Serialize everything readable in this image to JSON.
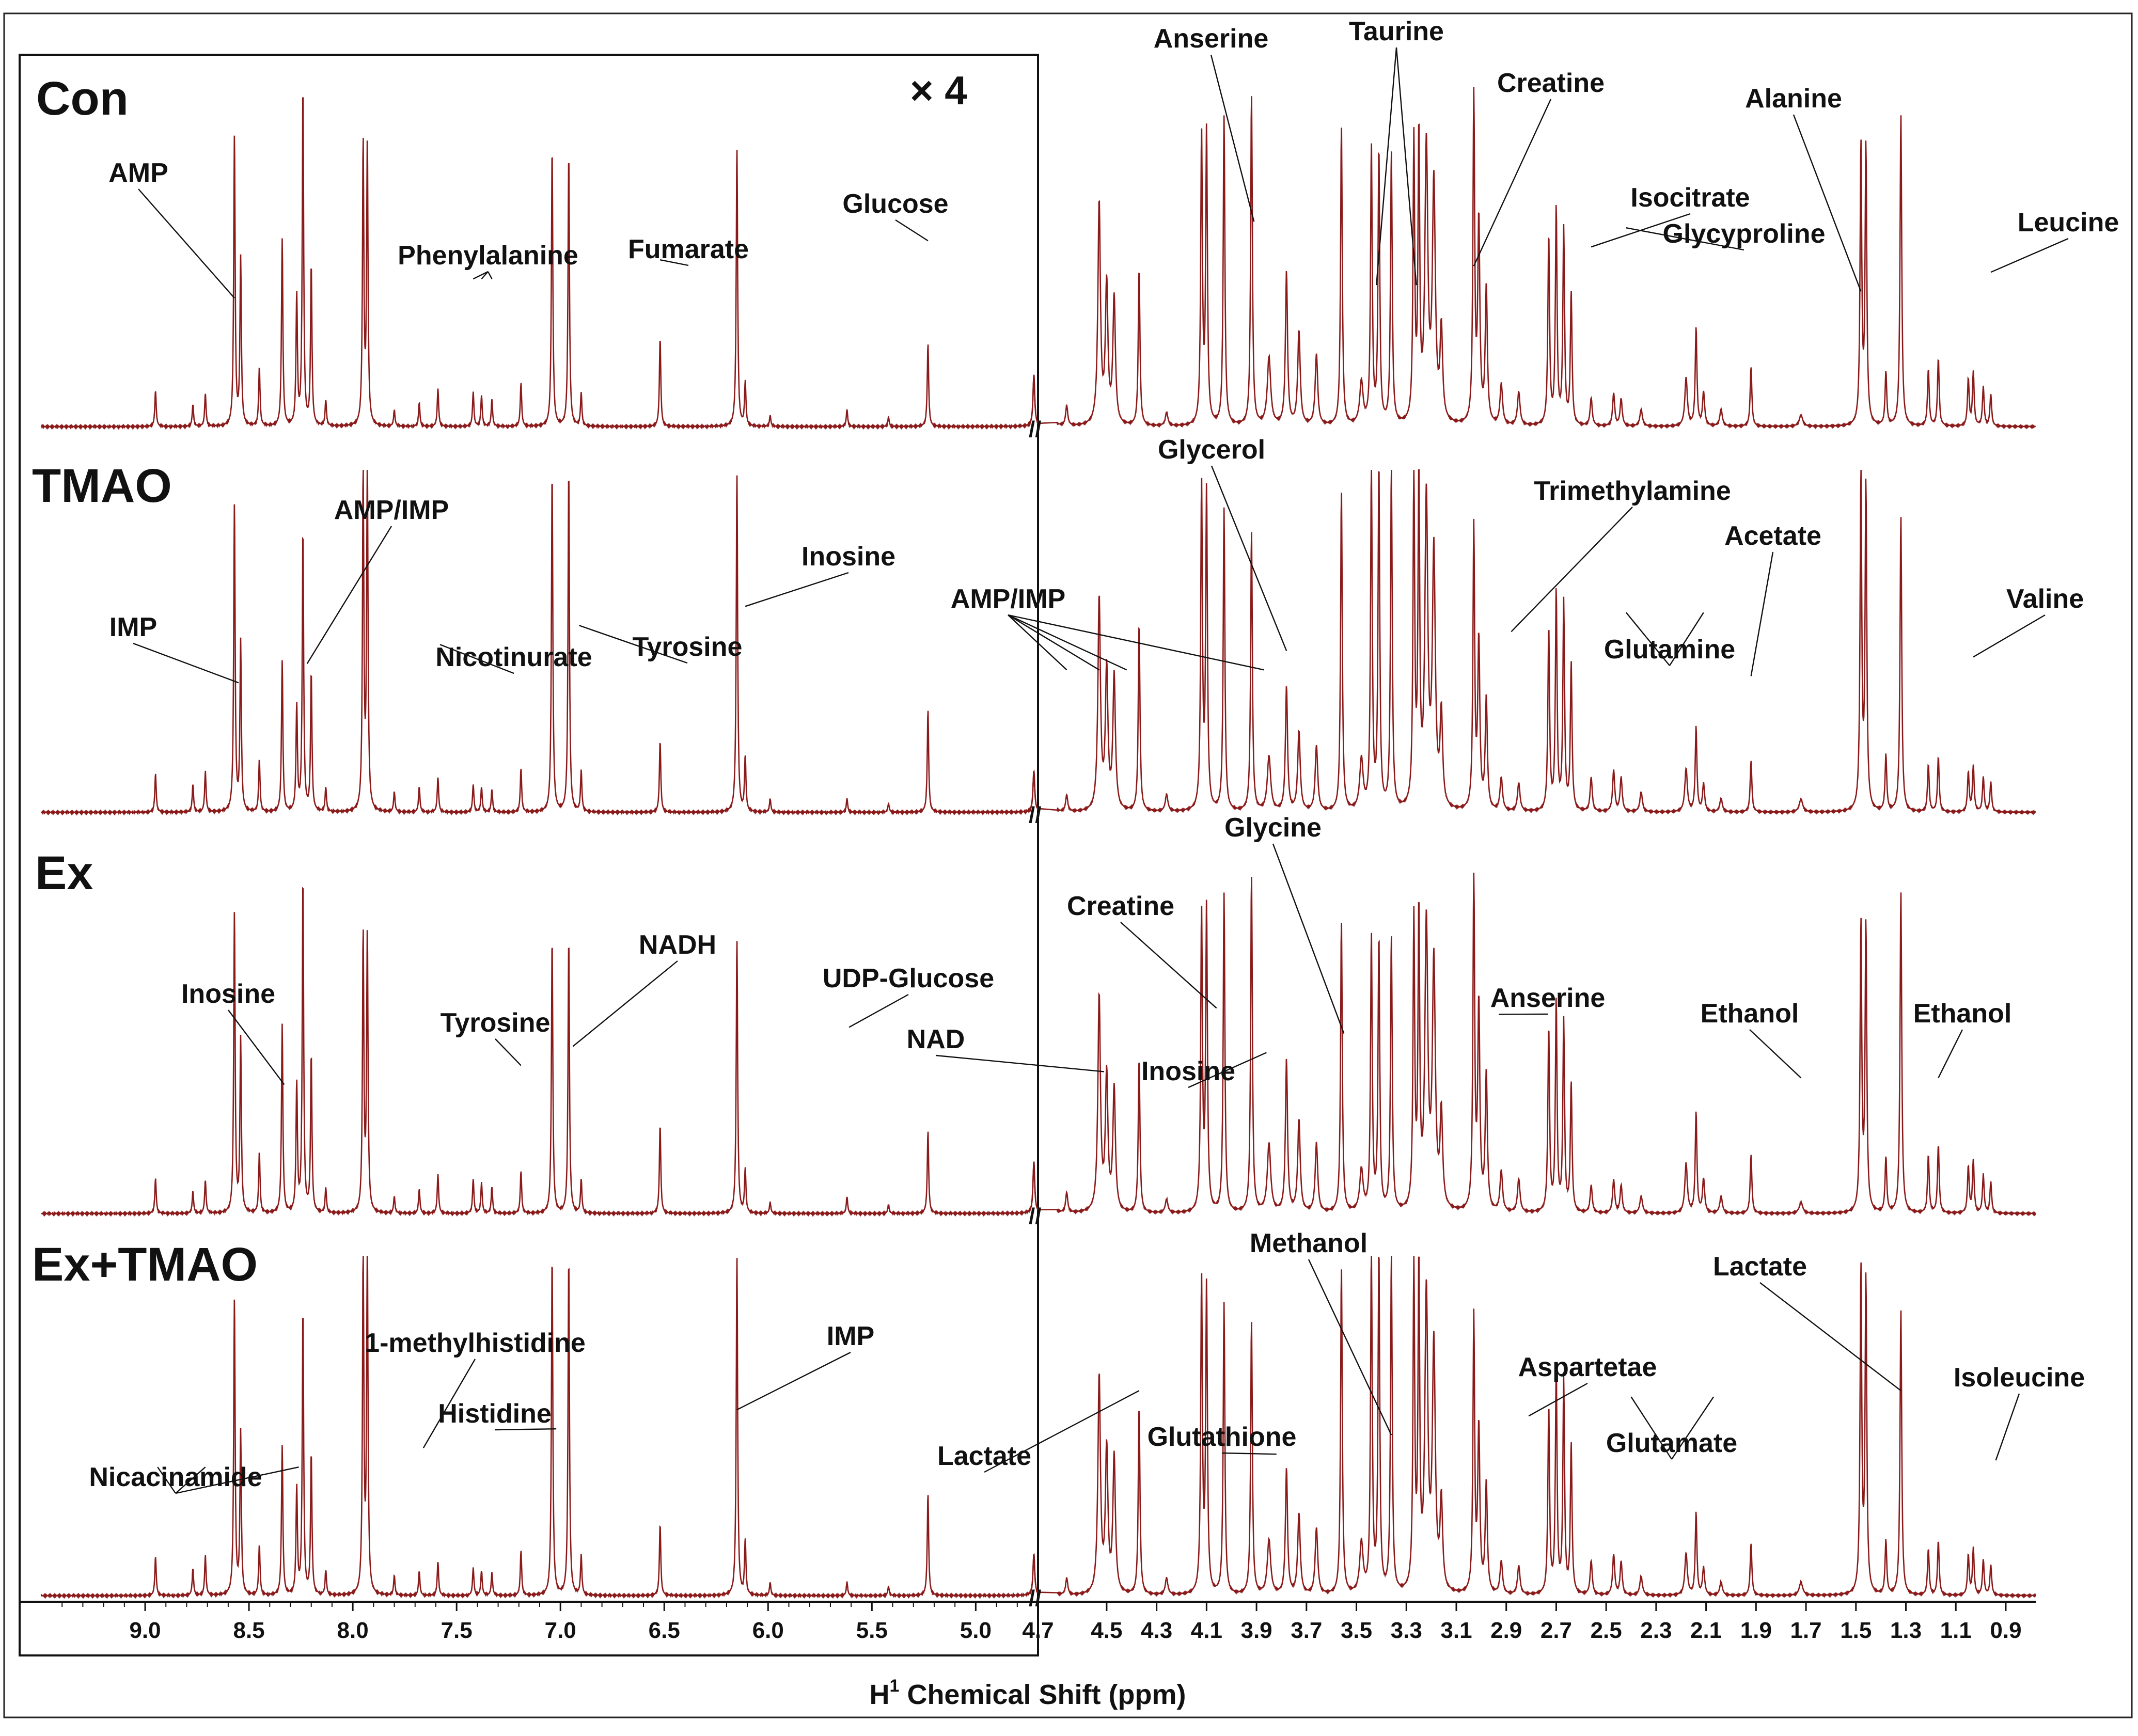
{
  "chart_data": {
    "type": "line",
    "title": "",
    "xlabel": "H¹ Chemical Shift (ppm)",
    "xlabel_base": "H",
    "xlabel_sup": "1",
    "xlabel_rest": " Chemical Shift (ppm)",
    "ylabel": "",
    "grid": false,
    "x_reversed": true,
    "magnification_label": "× 4",
    "magnified_region_ppm": [
      9.5,
      4.7
    ],
    "xlim_left_panel": [
      9.5,
      4.7
    ],
    "xlim_right_panel": [
      4.75,
      0.78
    ],
    "x_ticks_left": [
      "9.0",
      "8.5",
      "8.0",
      "7.5",
      "7.0",
      "6.5",
      "6.0",
      "5.5",
      "5.0",
      "4.7"
    ],
    "x_ticks_right": [
      "4.5",
      "4.3",
      "4.1",
      "3.9",
      "3.7",
      "3.5",
      "3.3",
      "3.1",
      "2.9",
      "2.7",
      "2.5",
      "2.3",
      "2.1",
      "1.9",
      "1.7",
      "1.5",
      "1.3",
      "1.1",
      "0.9"
    ],
    "series": [
      {
        "name": "Con",
        "annotations": [
          {
            "label": "AMP",
            "ppm": 8.57
          },
          {
            "label": "Phenylalanine",
            "ppm": [
              7.42,
              7.38,
              7.33
            ]
          },
          {
            "label": "Fumarate",
            "ppm": 6.52
          },
          {
            "label": "Glucose",
            "ppm": 5.23
          },
          {
            "label": "Anserine",
            "ppm": 3.91
          },
          {
            "label": "Taurine",
            "ppm": [
              3.42,
              3.26
            ]
          },
          {
            "label": "Creatine",
            "ppm": 3.03
          },
          {
            "label": "Isocitrate",
            "ppm": 2.56
          },
          {
            "label": "Glycyproline",
            "ppm": 2.42
          },
          {
            "label": "Alanine",
            "ppm": 1.48
          },
          {
            "label": "Leucine",
            "ppm": 0.96
          }
        ]
      },
      {
        "name": "TMAO",
        "annotations": [
          {
            "label": "IMP",
            "ppm": 8.55
          },
          {
            "label": "AMP/IMP",
            "ppm": 8.22
          },
          {
            "label": "Nicotinurate",
            "ppm": 7.58
          },
          {
            "label": "Tyrosine",
            "ppm": 6.91
          },
          {
            "label": "Inosine",
            "ppm": 6.11
          },
          {
            "label": "AMP/IMP",
            "ppm": [
              4.66,
              4.53,
              4.42,
              3.87
            ]
          },
          {
            "label": "Glycerol",
            "ppm": 3.78
          },
          {
            "label": "Trimethylamine",
            "ppm": 2.88
          },
          {
            "label": "Glutamine",
            "ppm": [
              2.42,
              2.11
            ]
          },
          {
            "label": "Acetate",
            "ppm": 1.92
          },
          {
            "label": "Valine",
            "ppm": 1.03
          }
        ]
      },
      {
        "name": "Ex",
        "annotations": [
          {
            "label": "Inosine",
            "ppm": 8.33
          },
          {
            "label": "Tyrosine",
            "ppm": 7.19
          },
          {
            "label": "NADH",
            "ppm": 6.94
          },
          {
            "label": "UDP-Glucose",
            "ppm": 5.61
          },
          {
            "label": "Creatine",
            "ppm": 4.06
          },
          {
            "label": "NAD",
            "ppm": 4.51
          },
          {
            "label": "Inosine",
            "ppm": 3.86
          },
          {
            "label": "Glycine",
            "ppm": 3.55
          },
          {
            "label": "Anserine",
            "ppm": 2.93
          },
          {
            "label": "Ethanol",
            "ppm": [
              1.72,
              1.17
            ]
          }
        ]
      },
      {
        "name": "Ex+TMAO",
        "annotations": [
          {
            "label": "Nicacinamide",
            "ppm": [
              8.94,
              8.71,
              8.26
            ]
          },
          {
            "label": "1-methylhistidine",
            "ppm": 7.66
          },
          {
            "label": "Histidine",
            "ppm": 7.02
          },
          {
            "label": "IMP",
            "ppm": 6.15
          },
          {
            "label": "Lactate",
            "ppm": [
              4.37,
              1.32
            ]
          },
          {
            "label": "Glutathione",
            "ppm": 3.82
          },
          {
            "label": "Methanol",
            "ppm": 3.36
          },
          {
            "label": "Aspartetae",
            "ppm": 2.81
          },
          {
            "label": "Glutamate",
            "ppm": [
              2.4,
              2.07
            ]
          },
          {
            "label": "Isoleucine",
            "ppm": 0.94
          }
        ]
      }
    ]
  }
}
